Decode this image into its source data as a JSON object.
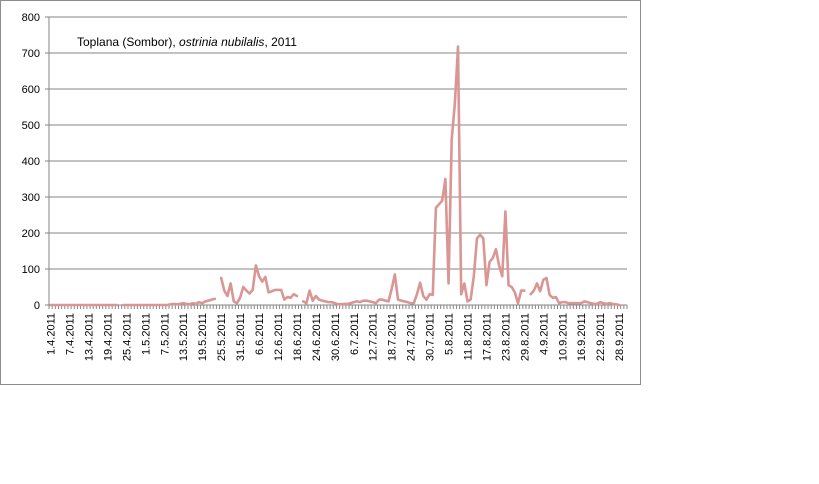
{
  "chart_data": {
    "type": "line",
    "title_parts": [
      "Toplana (Sombor), ",
      "ostrinia nubilalis",
      ", 2011"
    ],
    "xlabel": "",
    "ylabel": "",
    "ylim": [
      0,
      800
    ],
    "yticks": [
      "0",
      "100",
      "200",
      "300",
      "400",
      "500",
      "600",
      "700",
      "800"
    ],
    "grid": true,
    "legend": "none",
    "line_color": "#d99694",
    "x_start": "1.4.2011",
    "x_end": "30.9.2011",
    "xtick_labels": [
      "1.4.2011",
      "7.4.2011",
      "13.4.2011",
      "19.4.2011",
      "25.4.2011",
      "1.5.2011",
      "7.5.2011",
      "13.5.2011",
      "19.5.2011",
      "25.5.2011",
      "31.5.2011",
      "6.6.2011",
      "12.6.2011",
      "18.6.2011",
      "24.6.2011",
      "30.6.2011",
      "6.7.2011",
      "12.7.2011",
      "18.7.2011",
      "24.7.2011",
      "30.7.2011",
      "5.8.2011",
      "11.8.2011",
      "17.8.2011",
      "23.8.2011",
      "29.8.2011",
      "4.9.2011",
      "10.9.2011",
      "16.9.2011",
      "22.9.2011",
      "28.9.2011"
    ],
    "series": [
      {
        "segments": [
          [
            [
              "1.4.2011",
              0
            ],
            [
              "2.4.2011",
              0
            ],
            [
              "3.4.2011",
              0
            ],
            [
              "4.4.2011",
              0
            ],
            [
              "5.4.2011",
              0
            ],
            [
              "6.4.2011",
              0
            ],
            [
              "7.4.2011",
              0
            ],
            [
              "8.4.2011",
              0
            ],
            [
              "9.4.2011",
              0
            ],
            [
              "10.4.2011",
              0
            ],
            [
              "11.4.2011",
              0
            ],
            [
              "12.4.2011",
              0
            ],
            [
              "13.4.2011",
              0
            ],
            [
              "14.4.2011",
              0
            ],
            [
              "15.4.2011",
              0
            ],
            [
              "16.4.2011",
              0
            ],
            [
              "17.4.2011",
              0
            ],
            [
              "18.4.2011",
              0
            ],
            [
              "19.4.2011",
              0
            ],
            [
              "20.4.2011",
              0
            ],
            [
              "21.4.2011",
              0
            ],
            [
              "22.4.2011",
              0
            ]
          ],
          [
            [
              "24.4.2011",
              0
            ],
            [
              "25.4.2011",
              0
            ],
            [
              "26.4.2011",
              0
            ],
            [
              "27.4.2011",
              0
            ],
            [
              "28.4.2011",
              0
            ],
            [
              "29.4.2011",
              0
            ],
            [
              "30.4.2011",
              0
            ],
            [
              "1.5.2011",
              0
            ],
            [
              "2.5.2011",
              0
            ],
            [
              "3.5.2011",
              0
            ],
            [
              "4.5.2011",
              0
            ],
            [
              "5.5.2011",
              0
            ],
            [
              "6.5.2011",
              0
            ],
            [
              "7.5.2011",
              0
            ],
            [
              "8.5.2011",
              0
            ],
            [
              "9.5.2011",
              2
            ],
            [
              "10.5.2011",
              3
            ],
            [
              "11.5.2011",
              2
            ],
            [
              "12.5.2011",
              3
            ],
            [
              "13.5.2011",
              5
            ],
            [
              "14.5.2011",
              3
            ],
            [
              "15.5.2011",
              2
            ],
            [
              "16.5.2011",
              5
            ],
            [
              "17.5.2011",
              3
            ],
            [
              "18.5.2011",
              8
            ],
            [
              "19.5.2011",
              5
            ],
            [
              "20.5.2011",
              10
            ],
            [
              "21.5.2011",
              12
            ],
            [
              "22.5.2011",
              15
            ],
            [
              "23.5.2011",
              17
            ]
          ],
          [
            [
              "25.5.2011",
              75
            ],
            [
              "26.5.2011",
              40
            ],
            [
              "27.5.2011",
              25
            ],
            [
              "28.5.2011",
              60
            ],
            [
              "29.5.2011",
              10
            ],
            [
              "30.5.2011",
              5
            ],
            [
              "31.5.2011",
              20
            ],
            [
              "1.6.2011",
              50
            ],
            [
              "2.6.2011",
              40
            ],
            [
              "3.6.2011",
              32
            ],
            [
              "4.6.2011",
              42
            ],
            [
              "5.6.2011",
              110
            ],
            [
              "6.6.2011",
              80
            ],
            [
              "7.6.2011",
              65
            ],
            [
              "8.6.2011",
              78
            ],
            [
              "9.6.2011",
              35
            ],
            [
              "10.6.2011",
              38
            ],
            [
              "11.6.2011",
              42
            ],
            [
              "12.6.2011",
              42
            ],
            [
              "13.6.2011",
              42
            ],
            [
              "14.6.2011",
              15
            ],
            [
              "15.6.2011",
              22
            ],
            [
              "16.6.2011",
              20
            ],
            [
              "17.6.2011",
              30
            ],
            [
              "18.6.2011",
              25
            ]
          ],
          [
            [
              "20.6.2011",
              10
            ],
            [
              "21.6.2011",
              5
            ],
            [
              "22.6.2011",
              40
            ],
            [
              "23.6.2011",
              12
            ],
            [
              "24.6.2011",
              25
            ],
            [
              "25.6.2011",
              15
            ],
            [
              "26.6.2011",
              12
            ],
            [
              "27.6.2011",
              10
            ],
            [
              "28.6.2011",
              8
            ],
            [
              "29.6.2011",
              8
            ],
            [
              "30.6.2011",
              5
            ],
            [
              "1.7.2011",
              2
            ],
            [
              "2.7.2011",
              2
            ],
            [
              "3.7.2011",
              3
            ],
            [
              "4.7.2011",
              3
            ],
            [
              "5.7.2011",
              5
            ],
            [
              "6.7.2011",
              8
            ],
            [
              "7.7.2011",
              10
            ],
            [
              "8.7.2011",
              8
            ],
            [
              "9.7.2011",
              12
            ],
            [
              "10.7.2011",
              12
            ],
            [
              "11.7.2011",
              10
            ],
            [
              "12.7.2011",
              8
            ],
            [
              "13.7.2011",
              5
            ],
            [
              "14.7.2011",
              15
            ],
            [
              "15.7.2011",
              15
            ],
            [
              "16.7.2011",
              12
            ],
            [
              "17.7.2011",
              10
            ],
            [
              "18.7.2011",
              45
            ],
            [
              "19.7.2011",
              85
            ],
            [
              "20.7.2011",
              15
            ],
            [
              "21.7.2011",
              12
            ],
            [
              "22.7.2011",
              10
            ],
            [
              "23.7.2011",
              8
            ],
            [
              "24.7.2011",
              5
            ],
            [
              "25.7.2011",
              5
            ],
            [
              "26.7.2011",
              30
            ],
            [
              "27.7.2011",
              62
            ],
            [
              "28.7.2011",
              25
            ],
            [
              "29.7.2011",
              15
            ],
            [
              "30.7.2011",
              30
            ],
            [
              "31.7.2011",
              28
            ],
            [
              "1.8.2011",
              270
            ],
            [
              "2.8.2011",
              280
            ],
            [
              "3.8.2011",
              290
            ],
            [
              "4.8.2011",
              350
            ],
            [
              "5.8.2011",
              60
            ],
            [
              "6.8.2011",
              460
            ],
            [
              "7.8.2011",
              560
            ],
            [
              "8.8.2011",
              718
            ],
            [
              "9.8.2011",
              30
            ],
            [
              "10.8.2011",
              60
            ],
            [
              "11.8.2011",
              10
            ],
            [
              "12.8.2011",
              15
            ],
            [
              "13.8.2011",
              80
            ],
            [
              "14.8.2011",
              185
            ],
            [
              "15.8.2011",
              195
            ],
            [
              "16.8.2011",
              185
            ],
            [
              "17.8.2011",
              55
            ],
            [
              "18.8.2011",
              120
            ],
            [
              "19.8.2011",
              130
            ],
            [
              "20.8.2011",
              155
            ],
            [
              "21.8.2011",
              110
            ],
            [
              "22.8.2011",
              80
            ],
            [
              "23.8.2011",
              260
            ],
            [
              "24.8.2011",
              55
            ],
            [
              "25.8.2011",
              50
            ],
            [
              "26.8.2011",
              35
            ],
            [
              "27.8.2011",
              5
            ],
            [
              "28.8.2011",
              40
            ],
            [
              "29.8.2011",
              40
            ]
          ],
          [
            [
              "31.8.2011",
              30
            ],
            [
              "1.9.2011",
              40
            ],
            [
              "2.9.2011",
              60
            ],
            [
              "3.9.2011",
              38
            ],
            [
              "4.9.2011",
              70
            ],
            [
              "5.9.2011",
              75
            ],
            [
              "6.9.2011",
              28
            ],
            [
              "7.9.2011",
              20
            ],
            [
              "8.9.2011",
              22
            ],
            [
              "9.9.2011",
              5
            ],
            [
              "10.9.2011",
              8
            ],
            [
              "11.9.2011",
              8
            ],
            [
              "12.9.2011",
              5
            ],
            [
              "13.9.2011",
              5
            ],
            [
              "14.9.2011",
              5
            ],
            [
              "15.9.2011",
              5
            ],
            [
              "16.9.2011",
              5
            ],
            [
              "17.9.2011",
              10
            ],
            [
              "18.9.2011",
              8
            ],
            [
              "19.9.2011",
              5
            ],
            [
              "20.9.2011",
              3
            ],
            [
              "21.9.2011",
              3
            ],
            [
              "22.9.2011",
              8
            ],
            [
              "23.9.2011",
              5
            ],
            [
              "24.9.2011",
              3
            ],
            [
              "25.9.2011",
              5
            ],
            [
              "26.9.2011",
              3
            ],
            [
              "27.9.2011",
              2
            ],
            [
              "28.9.2011",
              0
            ]
          ]
        ]
      }
    ]
  }
}
